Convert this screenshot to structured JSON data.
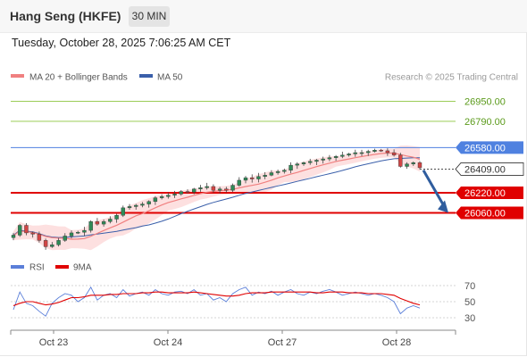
{
  "header": {
    "title": "Hang Seng (HKFE)",
    "timeframe": "30 MIN",
    "datetime": "Tuesday, October 28, 2025 7:06:25 AM CET"
  },
  "legend": {
    "ma20": "MA 20 + Bollinger Bands",
    "ma50": "MA 50",
    "credit": "Research © 2025 Trading Central"
  },
  "colors": {
    "resistance": "#8dc63f",
    "pivot": "#4f81e0",
    "support": "#e00000",
    "current": "#333333",
    "ma20": "#f08080",
    "ma50": "#3a5faa",
    "bollinger_fill": "#fde0e0",
    "candle_up": "#2e8b57",
    "candle_down": "#d24545",
    "rsi": "#5b7fd9",
    "rsi_ma": "#e00000",
    "arrow": "#2f5d9e"
  },
  "chart_data": [
    {
      "type": "candlestick",
      "x_ticks": [
        "Oct 23",
        "Oct 24",
        "Oct 27",
        "Oct 28"
      ],
      "ylim": [
        25750,
        27060
      ],
      "levels": [
        {
          "value": 26950.0,
          "label": "26950.00",
          "kind": "resistance"
        },
        {
          "value": 26790.0,
          "label": "26790.00",
          "kind": "resistance"
        },
        {
          "value": 26580.0,
          "label": "26580.00",
          "kind": "pivot"
        },
        {
          "value": 26409.0,
          "label": "26409.00",
          "kind": "current"
        },
        {
          "value": 26220.0,
          "label": "26220.00",
          "kind": "support"
        },
        {
          "value": 26060.0,
          "label": "26060.00",
          "kind": "support"
        }
      ],
      "close_path": [
        25882,
        25960,
        25900,
        25890,
        25840,
        25790,
        25805,
        25840,
        25875,
        25900,
        25905,
        25920,
        25990,
        25970,
        25990,
        26010,
        26040,
        26100,
        26110,
        26120,
        26130,
        26150,
        26180,
        26190,
        26200,
        26210,
        26230,
        26225,
        26250,
        26260,
        26270,
        26240,
        26250,
        26240,
        26280,
        26320,
        26340,
        26330,
        26350,
        26360,
        26380,
        26390,
        26400,
        26440,
        26450,
        26460,
        26470,
        26480,
        26490,
        26500,
        26510,
        26520,
        26530,
        26540,
        26540,
        26550,
        26560,
        26555,
        26540,
        26520,
        26430,
        26450,
        26460,
        26420
      ],
      "forecast_arrow": {
        "from": 26400,
        "to": 26060
      }
    },
    {
      "type": "line",
      "series": [
        {
          "name": "RSI",
          "values": [
            40,
            62,
            48,
            45,
            38,
            32,
            48,
            55,
            60,
            58,
            50,
            55,
            68,
            52,
            58,
            60,
            55,
            65,
            57,
            60,
            62,
            58,
            65,
            60,
            58,
            62,
            63,
            60,
            65,
            58,
            60,
            52,
            55,
            50,
            60,
            65,
            68,
            58,
            62,
            60,
            63,
            58,
            62,
            65,
            60,
            58,
            62,
            60,
            63,
            65,
            62,
            58,
            60,
            62,
            60,
            58,
            60,
            58,
            55,
            50,
            35,
            42,
            45,
            42
          ]
        },
        {
          "name": "9MA",
          "values": [
            45,
            48,
            50,
            50,
            48,
            46,
            47,
            49,
            52,
            55,
            55,
            56,
            58,
            58,
            58,
            59,
            59,
            60,
            60,
            60,
            61,
            61,
            62,
            62,
            61,
            61,
            61,
            61,
            62,
            61,
            60,
            59,
            58,
            57,
            57,
            58,
            60,
            61,
            61,
            61,
            62,
            62,
            62,
            62,
            62,
            62,
            62,
            61,
            61,
            62,
            62,
            62,
            61,
            61,
            61,
            60,
            60,
            60,
            59,
            58,
            54,
            51,
            48,
            46
          ]
        }
      ],
      "y_ticks": [
        70,
        50,
        30
      ],
      "ylim": [
        20,
        80
      ]
    }
  ]
}
